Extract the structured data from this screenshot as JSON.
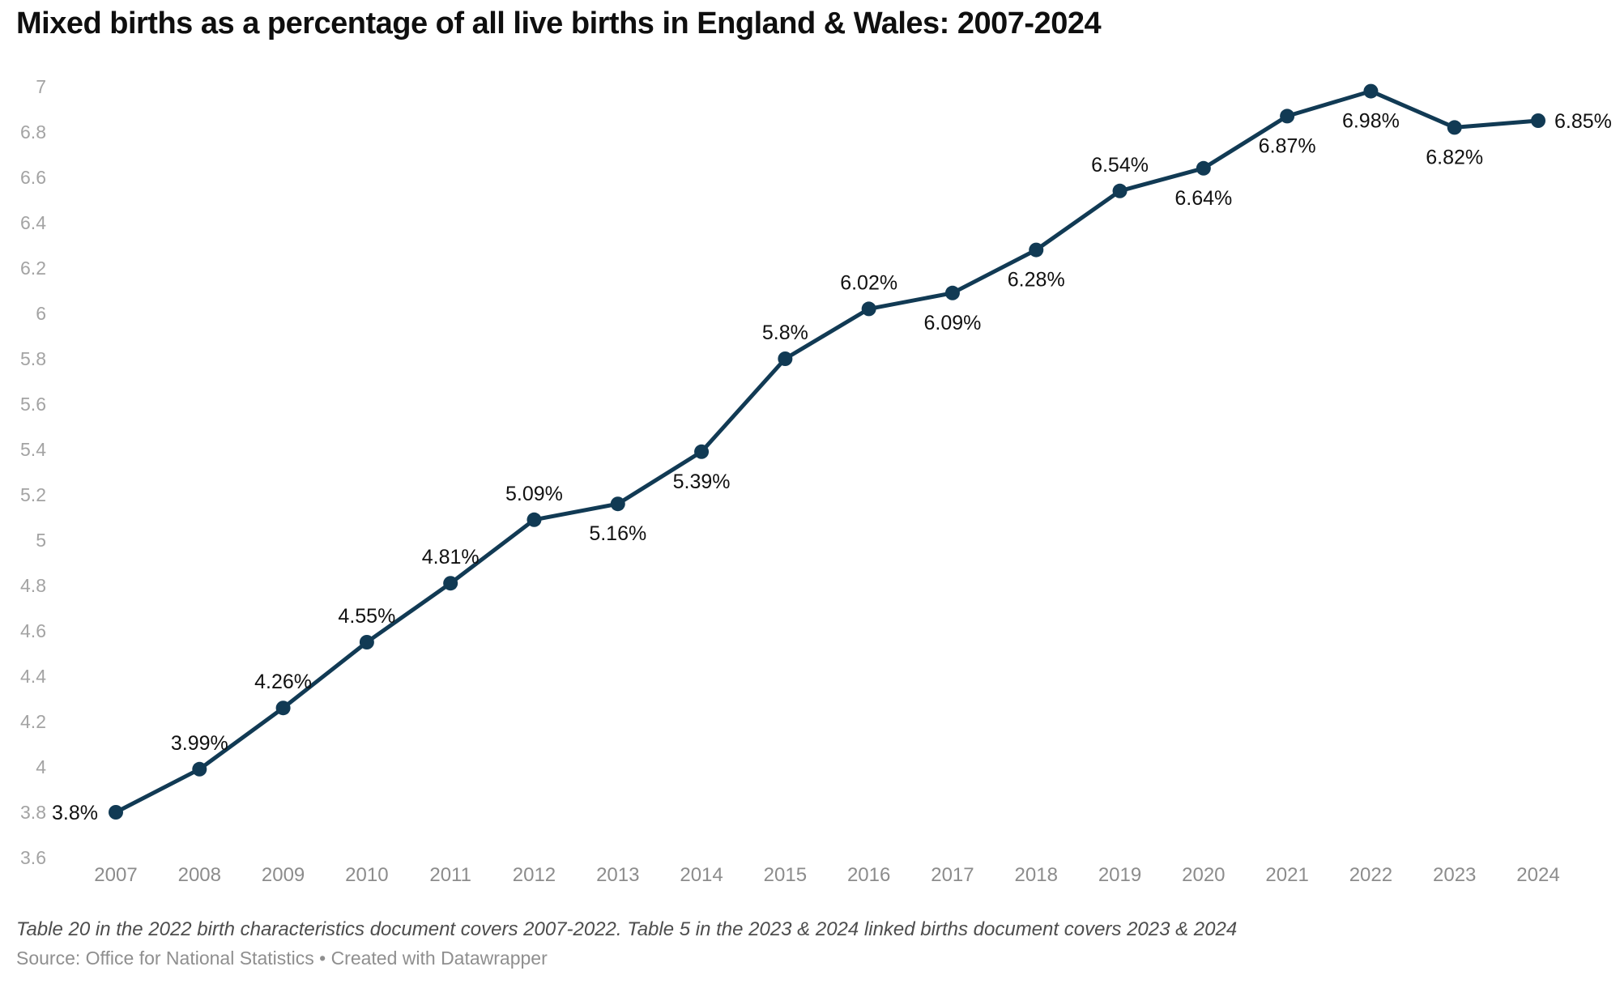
{
  "page": {
    "title": "Mixed births as a percentage of all live births in England & Wales: 2007-2024",
    "notes": "Table 20 in the 2022 birth characteristics document covers 2007-2022. Table 5 in the 2023 & 2024 linked births document covers 2023 & 2024",
    "source": "Source: Office for National Statistics • Created with Datawrapper"
  },
  "chart_data": {
    "type": "line",
    "title": "Mixed births as a percentage of all live births in England & Wales: 2007-2024",
    "xlabel": "",
    "ylabel": "",
    "x": [
      "2007",
      "2008",
      "2009",
      "2010",
      "2011",
      "2012",
      "2013",
      "2014",
      "2015",
      "2016",
      "2017",
      "2018",
      "2019",
      "2020",
      "2021",
      "2022",
      "2023",
      "2024"
    ],
    "values": [
      3.8,
      3.99,
      4.26,
      4.55,
      4.81,
      5.09,
      5.16,
      5.39,
      5.8,
      6.02,
      6.09,
      6.28,
      6.54,
      6.64,
      6.87,
      6.98,
      6.82,
      6.85
    ],
    "point_labels": [
      "3.8%",
      "3.99%",
      "4.26%",
      "4.55%",
      "4.81%",
      "5.09%",
      "5.16%",
      "5.39%",
      "5.8%",
      "6.02%",
      "6.09%",
      "6.28%",
      "6.54%",
      "6.64%",
      "6.87%",
      "6.98%",
      "6.82%",
      "6.85%"
    ],
    "label_positions": [
      "left",
      "above",
      "above",
      "above",
      "above",
      "above",
      "below",
      "below",
      "above",
      "above",
      "below",
      "below",
      "above",
      "below",
      "below",
      "below",
      "below",
      "right"
    ],
    "ylim": [
      3.6,
      7
    ],
    "yticks": [
      "3.6",
      "3.8",
      "4",
      "4.2",
      "4.4",
      "4.6",
      "4.8",
      "5",
      "5.2",
      "5.4",
      "5.6",
      "5.8",
      "6",
      "6.2",
      "6.4",
      "6.6",
      "6.8",
      "7"
    ],
    "grid": false,
    "legend": "none",
    "colors": {
      "line": "#113a54",
      "point": "#113a54",
      "data_label": "#111111",
      "y_tick": "#a3a3a3",
      "x_tick": "#8c8c8c",
      "title": "#0f0f0f",
      "notes": "#4d4d4d",
      "source": "#8f8f8f",
      "background": "#ffffff"
    }
  }
}
